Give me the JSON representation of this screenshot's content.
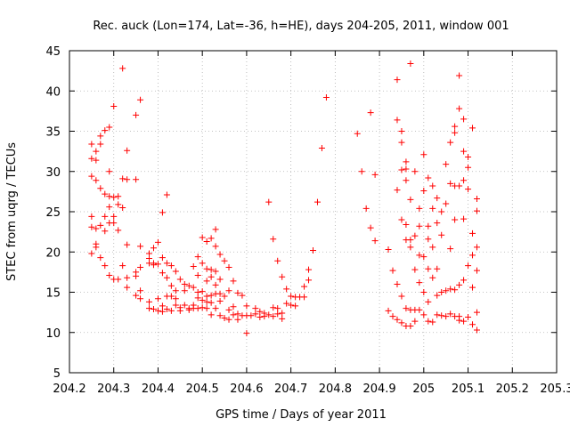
{
  "chart_data": {
    "type": "scatter",
    "title": "Rec. auck (Lon=174, Lat=-36, h=HE), days 204-205, 2011, window 001",
    "xlabel": "GPS time / Days of year 2011",
    "ylabel": "STEC from uqrg / TECUs",
    "xlim": [
      204.2,
      205.3
    ],
    "ylim": [
      5,
      45
    ],
    "x_ticks": [
      "204.2",
      "204.3",
      "204.4",
      "204.5",
      "204.6",
      "204.7",
      "204.8",
      "204.9",
      "205",
      "205.1",
      "205.2",
      "205.3"
    ],
    "y_ticks": [
      "5",
      "10",
      "15",
      "20",
      "25",
      "30",
      "35",
      "40",
      "45"
    ],
    "grid": true,
    "marker": "+",
    "color": "#ff0000",
    "series": [
      {
        "name": "STEC",
        "points": [
          [
            204.25,
            33.4
          ],
          [
            204.25,
            31.6
          ],
          [
            204.25,
            29.4
          ],
          [
            204.25,
            24.4
          ],
          [
            204.25,
            23.1
          ],
          [
            204.25,
            19.8
          ],
          [
            204.26,
            32.5
          ],
          [
            204.26,
            31.4
          ],
          [
            204.26,
            28.9
          ],
          [
            204.26,
            22.9
          ],
          [
            204.26,
            21.0
          ],
          [
            204.26,
            20.6
          ],
          [
            204.27,
            34.4
          ],
          [
            204.27,
            33.4
          ],
          [
            204.27,
            27.9
          ],
          [
            204.27,
            23.3
          ],
          [
            204.27,
            19.3
          ],
          [
            204.28,
            35.1
          ],
          [
            204.28,
            27.2
          ],
          [
            204.28,
            24.4
          ],
          [
            204.28,
            22.6
          ],
          [
            204.28,
            18.3
          ],
          [
            204.29,
            35.5
          ],
          [
            204.29,
            30.0
          ],
          [
            204.29,
            26.9
          ],
          [
            204.29,
            25.6
          ],
          [
            204.29,
            23.6
          ],
          [
            204.29,
            17.1
          ],
          [
            204.3,
            38.1
          ],
          [
            204.3,
            26.8
          ],
          [
            204.3,
            24.4
          ],
          [
            204.3,
            23.6
          ],
          [
            204.3,
            16.6
          ],
          [
            204.31,
            26.9
          ],
          [
            204.31,
            25.9
          ],
          [
            204.31,
            22.7
          ],
          [
            204.31,
            16.6
          ],
          [
            204.32,
            42.8
          ],
          [
            204.32,
            29.1
          ],
          [
            204.32,
            25.5
          ],
          [
            204.32,
            18.3
          ],
          [
            204.33,
            32.6
          ],
          [
            204.33,
            29.0
          ],
          [
            204.33,
            20.9
          ],
          [
            204.33,
            16.8
          ],
          [
            204.33,
            15.6
          ],
          [
            204.35,
            37.0
          ],
          [
            204.35,
            29.0
          ],
          [
            204.35,
            17.5
          ],
          [
            204.35,
            17.0
          ],
          [
            204.35,
            14.6
          ],
          [
            204.36,
            38.9
          ],
          [
            204.36,
            20.7
          ],
          [
            204.36,
            18.1
          ],
          [
            204.36,
            15.2
          ],
          [
            204.36,
            14.2
          ],
          [
            204.38,
            19.8
          ],
          [
            204.38,
            19.2
          ],
          [
            204.38,
            18.6
          ],
          [
            204.38,
            13.8
          ],
          [
            204.38,
            13.0
          ],
          [
            204.39,
            20.5
          ],
          [
            204.39,
            18.6
          ],
          [
            204.39,
            18.4
          ],
          [
            204.39,
            12.9
          ],
          [
            204.4,
            21.2
          ],
          [
            204.4,
            18.5
          ],
          [
            204.4,
            14.2
          ],
          [
            204.4,
            12.7
          ],
          [
            204.41,
            24.9
          ],
          [
            204.41,
            19.3
          ],
          [
            204.41,
            17.4
          ],
          [
            204.41,
            13.3
          ],
          [
            204.41,
            12.6
          ],
          [
            204.42,
            27.1
          ],
          [
            204.42,
            18.6
          ],
          [
            204.42,
            16.8
          ],
          [
            204.42,
            14.5
          ],
          [
            204.42,
            12.9
          ],
          [
            204.43,
            18.3
          ],
          [
            204.43,
            15.8
          ],
          [
            204.43,
            14.5
          ],
          [
            204.43,
            12.7
          ],
          [
            204.44,
            17.6
          ],
          [
            204.44,
            15.2
          ],
          [
            204.44,
            14.2
          ],
          [
            204.44,
            13.4
          ],
          [
            204.45,
            16.6
          ],
          [
            204.45,
            13.1
          ],
          [
            204.45,
            12.7
          ],
          [
            204.46,
            16.0
          ],
          [
            204.46,
            15.2
          ],
          [
            204.46,
            13.4
          ],
          [
            204.47,
            15.8
          ],
          [
            204.47,
            13.0
          ],
          [
            204.47,
            12.8
          ],
          [
            204.48,
            18.2
          ],
          [
            204.48,
            15.6
          ],
          [
            204.48,
            13.4
          ],
          [
            204.48,
            13.0
          ],
          [
            204.49,
            19.4
          ],
          [
            204.49,
            17.1
          ],
          [
            204.49,
            15.0
          ],
          [
            204.49,
            14.3
          ],
          [
            204.49,
            13.0
          ],
          [
            204.5,
            21.8
          ],
          [
            204.5,
            18.6
          ],
          [
            204.5,
            15.1
          ],
          [
            204.5,
            14.0
          ],
          [
            204.5,
            13.1
          ],
          [
            204.51,
            21.3
          ],
          [
            204.51,
            17.9
          ],
          [
            204.51,
            16.4
          ],
          [
            204.51,
            14.5
          ],
          [
            204.51,
            13.8
          ],
          [
            204.51,
            13.0
          ],
          [
            204.52,
            21.7
          ],
          [
            204.52,
            17.8
          ],
          [
            204.52,
            16.9
          ],
          [
            204.52,
            14.6
          ],
          [
            204.52,
            13.7
          ],
          [
            204.52,
            12.2
          ],
          [
            204.53,
            22.8
          ],
          [
            204.53,
            20.7
          ],
          [
            204.53,
            17.6
          ],
          [
            204.53,
            15.9
          ],
          [
            204.53,
            14.8
          ],
          [
            204.53,
            13.0
          ],
          [
            204.54,
            19.7
          ],
          [
            204.54,
            16.6
          ],
          [
            204.54,
            14.8
          ],
          [
            204.54,
            13.9
          ],
          [
            204.54,
            12.1
          ],
          [
            204.55,
            18.9
          ],
          [
            204.55,
            14.5
          ],
          [
            204.55,
            11.8
          ],
          [
            204.56,
            18.1
          ],
          [
            204.56,
            15.2
          ],
          [
            204.56,
            12.8
          ],
          [
            204.56,
            11.6
          ],
          [
            204.57,
            16.4
          ],
          [
            204.57,
            13.2
          ],
          [
            204.57,
            12.2
          ],
          [
            204.58,
            14.9
          ],
          [
            204.58,
            12.3
          ],
          [
            204.58,
            11.6
          ],
          [
            204.59,
            14.6
          ],
          [
            204.59,
            12.1
          ],
          [
            204.6,
            13.3
          ],
          [
            204.6,
            12.1
          ],
          [
            204.6,
            9.9
          ],
          [
            204.61,
            12.1
          ],
          [
            204.62,
            13.0
          ],
          [
            204.62,
            12.3
          ],
          [
            204.63,
            12.6
          ],
          [
            204.63,
            11.9
          ],
          [
            204.64,
            12.4
          ],
          [
            204.64,
            12.0
          ],
          [
            204.65,
            26.2
          ],
          [
            204.65,
            12.2
          ],
          [
            204.66,
            21.6
          ],
          [
            204.66,
            13.1
          ],
          [
            204.66,
            12.0
          ],
          [
            204.67,
            18.9
          ],
          [
            204.67,
            13.0
          ],
          [
            204.67,
            12.3
          ],
          [
            204.68,
            16.9
          ],
          [
            204.68,
            12.4
          ],
          [
            204.68,
            11.7
          ],
          [
            204.69,
            15.4
          ],
          [
            204.69,
            13.6
          ],
          [
            204.7,
            14.5
          ],
          [
            204.7,
            13.4
          ],
          [
            204.71,
            14.4
          ],
          [
            204.71,
            13.3
          ],
          [
            204.72,
            14.4
          ],
          [
            204.73,
            15.7
          ],
          [
            204.73,
            14.4
          ],
          [
            204.74,
            17.8
          ],
          [
            204.74,
            16.5
          ],
          [
            204.75,
            20.2
          ],
          [
            204.76,
            26.2
          ],
          [
            204.77,
            32.9
          ],
          [
            204.78,
            39.2
          ],
          [
            204.85,
            34.7
          ],
          [
            204.86,
            30.0
          ],
          [
            204.87,
            25.4
          ],
          [
            204.88,
            37.3
          ],
          [
            204.88,
            23.0
          ],
          [
            204.89,
            29.6
          ],
          [
            204.89,
            21.4
          ],
          [
            204.92,
            20.3
          ],
          [
            204.92,
            12.7
          ],
          [
            204.93,
            17.7
          ],
          [
            204.93,
            12.0
          ],
          [
            204.94,
            41.4
          ],
          [
            204.94,
            36.4
          ],
          [
            204.94,
            27.7
          ],
          [
            204.94,
            16.0
          ],
          [
            204.94,
            11.6
          ],
          [
            204.95,
            35.0
          ],
          [
            204.95,
            33.6
          ],
          [
            204.95,
            30.2
          ],
          [
            204.95,
            24.0
          ],
          [
            204.95,
            14.5
          ],
          [
            204.95,
            11.2
          ],
          [
            204.96,
            31.2
          ],
          [
            204.96,
            30.3
          ],
          [
            204.96,
            28.9
          ],
          [
            204.96,
            23.4
          ],
          [
            204.96,
            21.5
          ],
          [
            204.96,
            13.0
          ],
          [
            204.96,
            10.8
          ],
          [
            204.97,
            43.4
          ],
          [
            204.97,
            26.5
          ],
          [
            204.97,
            21.5
          ],
          [
            204.97,
            20.6
          ],
          [
            204.97,
            12.8
          ],
          [
            204.97,
            10.8
          ],
          [
            204.98,
            30.0
          ],
          [
            204.98,
            22.0
          ],
          [
            204.98,
            17.8
          ],
          [
            204.98,
            12.8
          ],
          [
            204.98,
            11.4
          ],
          [
            204.99,
            25.4
          ],
          [
            204.99,
            23.2
          ],
          [
            204.99,
            19.6
          ],
          [
            204.99,
            16.2
          ],
          [
            204.99,
            12.8
          ],
          [
            205.0,
            32.1
          ],
          [
            205.0,
            27.6
          ],
          [
            205.0,
            19.4
          ],
          [
            205.0,
            15.0
          ],
          [
            205.0,
            12.2
          ],
          [
            205.01,
            29.2
          ],
          [
            205.01,
            23.2
          ],
          [
            205.01,
            21.6
          ],
          [
            205.01,
            17.9
          ],
          [
            205.01,
            13.8
          ],
          [
            205.01,
            11.4
          ],
          [
            205.02,
            28.2
          ],
          [
            205.02,
            25.4
          ],
          [
            205.02,
            20.6
          ],
          [
            205.02,
            16.8
          ],
          [
            205.02,
            11.3
          ],
          [
            205.03,
            26.7
          ],
          [
            205.03,
            23.6
          ],
          [
            205.03,
            17.9
          ],
          [
            205.03,
            14.6
          ],
          [
            205.03,
            12.2
          ],
          [
            205.04,
            25.0
          ],
          [
            205.04,
            22.1
          ],
          [
            205.04,
            15.0
          ],
          [
            205.04,
            12.1
          ],
          [
            205.05,
            30.9
          ],
          [
            205.05,
            26.0
          ],
          [
            205.05,
            15.2
          ],
          [
            205.05,
            12.0
          ],
          [
            205.06,
            33.6
          ],
          [
            205.06,
            28.5
          ],
          [
            205.06,
            20.4
          ],
          [
            205.06,
            15.4
          ],
          [
            205.06,
            12.3
          ],
          [
            205.07,
            35.6
          ],
          [
            205.07,
            34.8
          ],
          [
            205.07,
            28.2
          ],
          [
            205.07,
            24.0
          ],
          [
            205.07,
            15.3
          ],
          [
            205.07,
            12.0
          ],
          [
            205.08,
            41.9
          ],
          [
            205.08,
            37.8
          ],
          [
            205.08,
            28.2
          ],
          [
            205.08,
            15.9
          ],
          [
            205.08,
            12.0
          ],
          [
            205.08,
            11.5
          ],
          [
            205.09,
            36.5
          ],
          [
            205.09,
            32.5
          ],
          [
            205.09,
            28.9
          ],
          [
            205.09,
            24.1
          ],
          [
            205.09,
            16.5
          ],
          [
            205.09,
            11.4
          ],
          [
            205.1,
            31.8
          ],
          [
            205.1,
            30.5
          ],
          [
            205.1,
            27.8
          ],
          [
            205.1,
            18.3
          ],
          [
            205.1,
            11.9
          ],
          [
            205.11,
            35.4
          ],
          [
            205.11,
            22.3
          ],
          [
            205.11,
            19.6
          ],
          [
            205.11,
            15.6
          ],
          [
            205.11,
            11.0
          ],
          [
            205.12,
            26.6
          ],
          [
            205.12,
            25.1
          ],
          [
            205.12,
            20.6
          ],
          [
            205.12,
            17.7
          ],
          [
            205.12,
            12.5
          ],
          [
            205.12,
            10.3
          ]
        ]
      }
    ]
  }
}
